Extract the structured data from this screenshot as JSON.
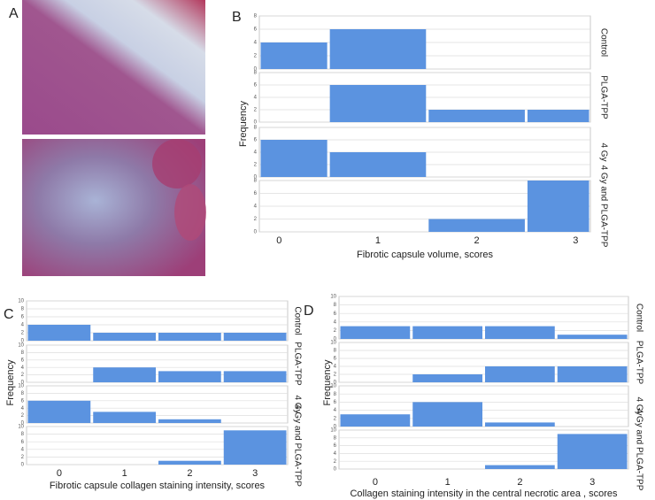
{
  "figure": {
    "panel_label": "A"
  },
  "chart_data": [
    {
      "type": "bar",
      "panel": "B",
      "y_label": "Frequency",
      "x_label": "Fibrotic capsule volume, scores",
      "categories": [
        0,
        1,
        2,
        3
      ],
      "xlim": [
        -0.2,
        3.15
      ],
      "ylim": [
        0,
        8
      ],
      "yticks": [
        0,
        2,
        4,
        6,
        8
      ],
      "grid": true,
      "color": "#5b93e0",
      "series": [
        {
          "name": "Control",
          "values": [
            4,
            6,
            0,
            0
          ]
        },
        {
          "name": "PLGA-TPP",
          "values": [
            0,
            6,
            2,
            2
          ]
        },
        {
          "name": "4 Gy",
          "values": [
            6,
            4,
            0,
            0
          ]
        },
        {
          "name": "4 Gy and PLGA-TPP",
          "values": [
            0,
            0,
            2,
            8
          ]
        }
      ]
    },
    {
      "type": "bar",
      "panel": "C",
      "y_label": "Frequency",
      "x_label": "Fibrotic capsule collagen staining intensity, scores",
      "categories": [
        0,
        1,
        2,
        3
      ],
      "xlim": [
        -0.5,
        3.5
      ],
      "ylim": [
        0,
        10
      ],
      "yticks": [
        0,
        2,
        4,
        6,
        8,
        10
      ],
      "grid": true,
      "color": "#5b93e0",
      "series": [
        {
          "name": "Control",
          "values": [
            4,
            2,
            2,
            2
          ]
        },
        {
          "name": "PLGA-TPP",
          "values": [
            0,
            4,
            3,
            3
          ]
        },
        {
          "name": "4 Gy",
          "values": [
            6,
            3,
            1,
            0
          ]
        },
        {
          "name": "4 Gy and PLGA-TPP",
          "values": [
            0,
            0,
            1,
            9
          ]
        }
      ]
    },
    {
      "type": "bar",
      "panel": "D",
      "y_label": "Frequency",
      "x_label": "Collagen staining intensity in the central necrotic area , scores",
      "categories": [
        0,
        1,
        2,
        3
      ],
      "xlim": [
        -0.5,
        3.5
      ],
      "ylim": [
        0,
        10
      ],
      "yticks": [
        0,
        2,
        4,
        6,
        8,
        10
      ],
      "grid": true,
      "color": "#5b93e0",
      "series": [
        {
          "name": "Control",
          "values": [
            3,
            3,
            3,
            1
          ]
        },
        {
          "name": "PLGA-TPP",
          "values": [
            0,
            2,
            4,
            4
          ]
        },
        {
          "name": "4 Gy",
          "values": [
            3,
            6,
            1,
            0
          ]
        },
        {
          "name": "4 Gy and PLGA-TPP",
          "values": [
            0,
            0,
            1,
            9
          ]
        }
      ]
    }
  ]
}
